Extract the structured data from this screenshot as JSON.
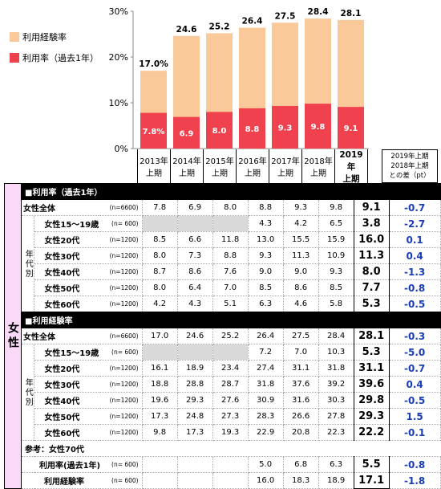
{
  "chart_data": {
    "type": "bar",
    "categories": [
      "2013年上期",
      "2014年上期",
      "2015年上期",
      "2016年上期",
      "2017年上期",
      "2018年上期",
      "2019年上期"
    ],
    "series": [
      {
        "name": "利用経験率",
        "values": [
          17.0,
          24.6,
          25.2,
          26.4,
          27.5,
          28.4,
          28.1
        ],
        "color": "#fac999"
      },
      {
        "name": "利用率（過去1年）",
        "values": [
          7.8,
          6.9,
          8.0,
          8.8,
          9.3,
          9.8,
          9.1
        ],
        "color": "#f0414f"
      }
    ],
    "bar_labels": [
      "17.0%",
      "24.6",
      "25.2",
      "26.4",
      "27.5",
      "28.4",
      "28.1"
    ],
    "inner_labels": [
      "7.8%",
      "6.9",
      "8.0",
      "8.8",
      "9.3",
      "9.8",
      "9.1"
    ],
    "yticks": [
      "0%",
      "10%",
      "20%",
      "30%"
    ],
    "ylim": [
      0,
      30
    ],
    "legend_position": "top-left"
  },
  "col_headers": [
    {
      "l1": "2013年",
      "l2": "上期"
    },
    {
      "l1": "2014年",
      "l2": "上期"
    },
    {
      "l1": "2015年",
      "l2": "上期"
    },
    {
      "l1": "2016年",
      "l2": "上期"
    },
    {
      "l1": "2017年",
      "l2": "上期"
    },
    {
      "l1": "2018年",
      "l2": "上期"
    },
    {
      "l1": "2019年",
      "l2": "上期"
    }
  ],
  "diff_header": [
    "2019年上期",
    "2018年上期",
    "との差（pt）"
  ],
  "table": {
    "side_label": "女性",
    "age_label": "年代別",
    "sections": [
      {
        "title": "■利用率（過去1年）",
        "rows": [
          {
            "label": "女性全体",
            "n": "(n=6600)",
            "vals": [
              "7.8",
              "6.9",
              "8.0",
              "8.8",
              "9.3",
              "9.8",
              "9.1"
            ],
            "diff": "-0.7",
            "full": true
          },
          {
            "label": "女性15～19歳",
            "n": "(n=  600)",
            "vals": [
              "",
              "",
              "",
              "4.3",
              "4.2",
              "6.5",
              "3.8"
            ],
            "diff": "-2.7"
          },
          {
            "label": "女性20代",
            "n": "(n=1200)",
            "vals": [
              "8.5",
              "6.6",
              "11.8",
              "13.0",
              "15.5",
              "15.9",
              "16.0"
            ],
            "diff": "0.1"
          },
          {
            "label": "女性30代",
            "n": "(n=1200)",
            "vals": [
              "8.0",
              "7.3",
              "8.8",
              "9.3",
              "11.3",
              "10.9",
              "11.3"
            ],
            "diff": "0.4"
          },
          {
            "label": "女性40代",
            "n": "(n=1200)",
            "vals": [
              "8.7",
              "8.6",
              "7.6",
              "9.0",
              "9.0",
              "9.3",
              "8.0"
            ],
            "diff": "-1.3"
          },
          {
            "label": "女性50代",
            "n": "(n=1200)",
            "vals": [
              "8.0",
              "6.4",
              "7.0",
              "8.5",
              "8.6",
              "8.5",
              "7.7"
            ],
            "diff": "-0.8"
          },
          {
            "label": "女性60代",
            "n": "(n=1200)",
            "vals": [
              "4.2",
              "4.3",
              "5.1",
              "6.3",
              "4.6",
              "5.8",
              "5.3"
            ],
            "diff": "-0.5"
          }
        ]
      },
      {
        "title": "■利用経験率",
        "rows": [
          {
            "label": "女性全体",
            "n": "(n=6600)",
            "vals": [
              "17.0",
              "24.6",
              "25.2",
              "26.4",
              "27.5",
              "28.4",
              "28.1"
            ],
            "diff": "-0.3",
            "full": true
          },
          {
            "label": "女性15～19歳",
            "n": "(n=  600)",
            "vals": [
              "",
              "",
              "",
              "7.2",
              "7.0",
              "10.3",
              "5.3"
            ],
            "diff": "-5.0"
          },
          {
            "label": "女性20代",
            "n": "(n=1200)",
            "vals": [
              "16.1",
              "18.9",
              "23.4",
              "27.4",
              "31.1",
              "31.8",
              "31.1"
            ],
            "diff": "-0.7"
          },
          {
            "label": "女性30代",
            "n": "(n=1200)",
            "vals": [
              "18.8",
              "28.8",
              "28.7",
              "31.8",
              "37.6",
              "39.2",
              "39.6"
            ],
            "diff": "0.4"
          },
          {
            "label": "女性40代",
            "n": "(n=1200)",
            "vals": [
              "19.6",
              "29.3",
              "27.6",
              "30.9",
              "31.6",
              "30.3",
              "29.8"
            ],
            "diff": "-0.5"
          },
          {
            "label": "女性50代",
            "n": "(n=1200)",
            "vals": [
              "17.3",
              "24.8",
              "27.3",
              "28.3",
              "26.6",
              "27.8",
              "29.3"
            ],
            "diff": "1.5"
          },
          {
            "label": "女性60代",
            "n": "(n=1200)",
            "vals": [
              "9.8",
              "17.3",
              "19.3",
              "22.9",
              "20.8",
              "22.3",
              "22.2"
            ],
            "diff": "-0.1"
          }
        ]
      }
    ],
    "ref_title": "参考：女性70代",
    "ref_rows": [
      {
        "label": "利用率(過去1年)",
        "n": "(n=  600)",
        "vals": [
          "",
          "",
          "",
          "5.0",
          "6.8",
          "6.3",
          "5.5"
        ],
        "diff": "-0.8"
      },
      {
        "label": "利用経験率",
        "n": "(n=  600)",
        "vals": [
          "",
          "",
          "",
          "16.0",
          "18.3",
          "18.9",
          "17.1"
        ],
        "diff": "-1.8"
      }
    ]
  }
}
